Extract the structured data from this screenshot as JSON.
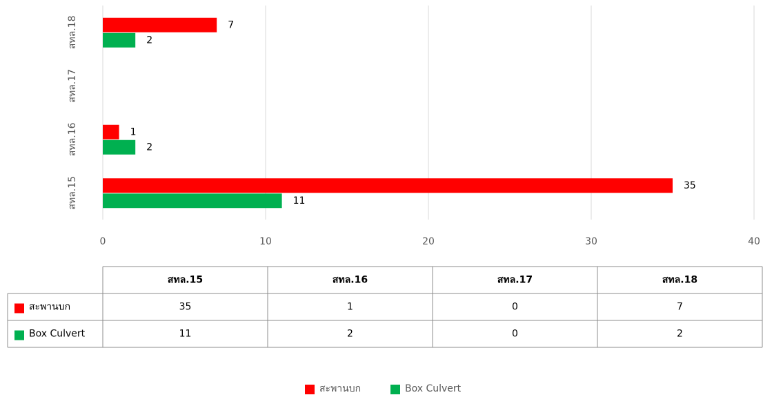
{
  "chart_data": {
    "type": "bar",
    "orientation": "horizontal",
    "categories": [
      "สทล.15",
      "สทล.16",
      "สทล.17",
      "สทล.18"
    ],
    "series": [
      {
        "name": "สะพานบก",
        "color": "#ff0000",
        "values": [
          35,
          1,
          0,
          7
        ]
      },
      {
        "name": "Box Culvert",
        "color": "#00b050",
        "values": [
          11,
          2,
          0,
          2
        ]
      }
    ],
    "xlim": [
      0,
      40
    ],
    "xticks": [
      0,
      10,
      20,
      30,
      40
    ],
    "grid": true,
    "legend": "bottom",
    "data_table": true
  }
}
